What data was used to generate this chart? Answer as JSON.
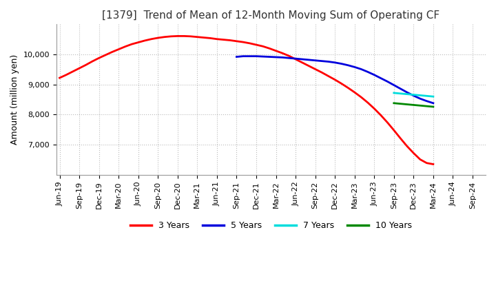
{
  "title": "[1379]  Trend of Mean of 12-Month Moving Sum of Operating CF",
  "ylabel": "Amount (million yen)",
  "background_color": "#ffffff",
  "grid_color": "#bbbbbb",
  "ylim": [
    6000,
    11000
  ],
  "yticks": [
    7000,
    8000,
    9000,
    10000
  ],
  "series": {
    "3 Years": {
      "color": "#ff0000",
      "x": [
        0,
        1,
        2,
        3,
        4,
        5,
        6,
        7,
        8,
        9,
        10,
        11,
        12,
        13,
        14,
        15,
        16,
        17,
        18,
        19,
        20,
        21,
        22,
        23,
        24,
        25,
        26,
        27,
        28,
        29,
        30,
        31,
        32,
        33,
        34,
        35,
        36,
        37,
        38,
        39,
        40,
        41,
        42,
        43,
        44,
        45,
        46,
        47,
        48,
        49,
        50,
        51,
        52,
        53,
        54,
        55,
        56,
        57
      ],
      "y": [
        9220,
        9320,
        9430,
        9540,
        9650,
        9770,
        9880,
        9980,
        10080,
        10170,
        10260,
        10340,
        10400,
        10460,
        10510,
        10550,
        10580,
        10600,
        10610,
        10610,
        10600,
        10580,
        10560,
        10540,
        10510,
        10490,
        10470,
        10440,
        10410,
        10370,
        10320,
        10270,
        10200,
        10120,
        10040,
        9950,
        9840,
        9730,
        9620,
        9510,
        9400,
        9280,
        9160,
        9030,
        8890,
        8740,
        8580,
        8400,
        8200,
        7980,
        7740,
        7480,
        7210,
        6950,
        6720,
        6510,
        6390,
        6350
      ]
    },
    "5 Years": {
      "color": "#0000dd",
      "x": [
        27,
        28,
        29,
        30,
        31,
        32,
        33,
        34,
        35,
        36,
        37,
        38,
        39,
        40,
        41,
        42,
        43,
        44,
        45,
        46,
        47,
        48,
        49,
        50,
        51,
        52,
        53,
        54,
        55,
        56,
        57
      ],
      "y": [
        9920,
        9940,
        9940,
        9940,
        9930,
        9920,
        9910,
        9900,
        9880,
        9860,
        9840,
        9820,
        9800,
        9780,
        9760,
        9730,
        9690,
        9640,
        9580,
        9510,
        9420,
        9320,
        9210,
        9100,
        8980,
        8860,
        8740,
        8630,
        8530,
        8450,
        8380
      ]
    },
    "7 Years": {
      "color": "#00dddd",
      "x": [
        51,
        52,
        53,
        54,
        55,
        56,
        57
      ],
      "y": [
        8720,
        8700,
        8680,
        8660,
        8640,
        8620,
        8600
      ]
    },
    "10 Years": {
      "color": "#008800",
      "x": [
        51,
        52,
        53,
        54,
        55,
        56,
        57
      ],
      "y": [
        8380,
        8360,
        8340,
        8320,
        8300,
        8280,
        8260
      ]
    }
  },
  "x_labels": {
    "0": "Jun-19",
    "3": "Sep-19",
    "6": "Dec-19",
    "9": "Mar-20",
    "12": "Jun-20",
    "15": "Sep-20",
    "18": "Dec-20",
    "21": "Mar-21",
    "24": "Jun-21",
    "27": "Sep-21",
    "30": "Dec-21",
    "33": "Mar-22",
    "36": "Jun-22",
    "39": "Sep-22",
    "42": "Dec-22",
    "45": "Mar-23",
    "48": "Jun-23",
    "51": "Sep-23",
    "54": "Dec-23",
    "57": "Mar-24",
    "60": "Jun-24",
    "63": "Sep-24"
  },
  "legend": {
    "3 Years": {
      "color": "#ff0000"
    },
    "5 Years": {
      "color": "#0000dd"
    },
    "7 Years": {
      "color": "#00dddd"
    },
    "10 Years": {
      "color": "#008800"
    }
  },
  "title_fontsize": 11,
  "ylabel_fontsize": 9,
  "tick_fontsize": 8
}
